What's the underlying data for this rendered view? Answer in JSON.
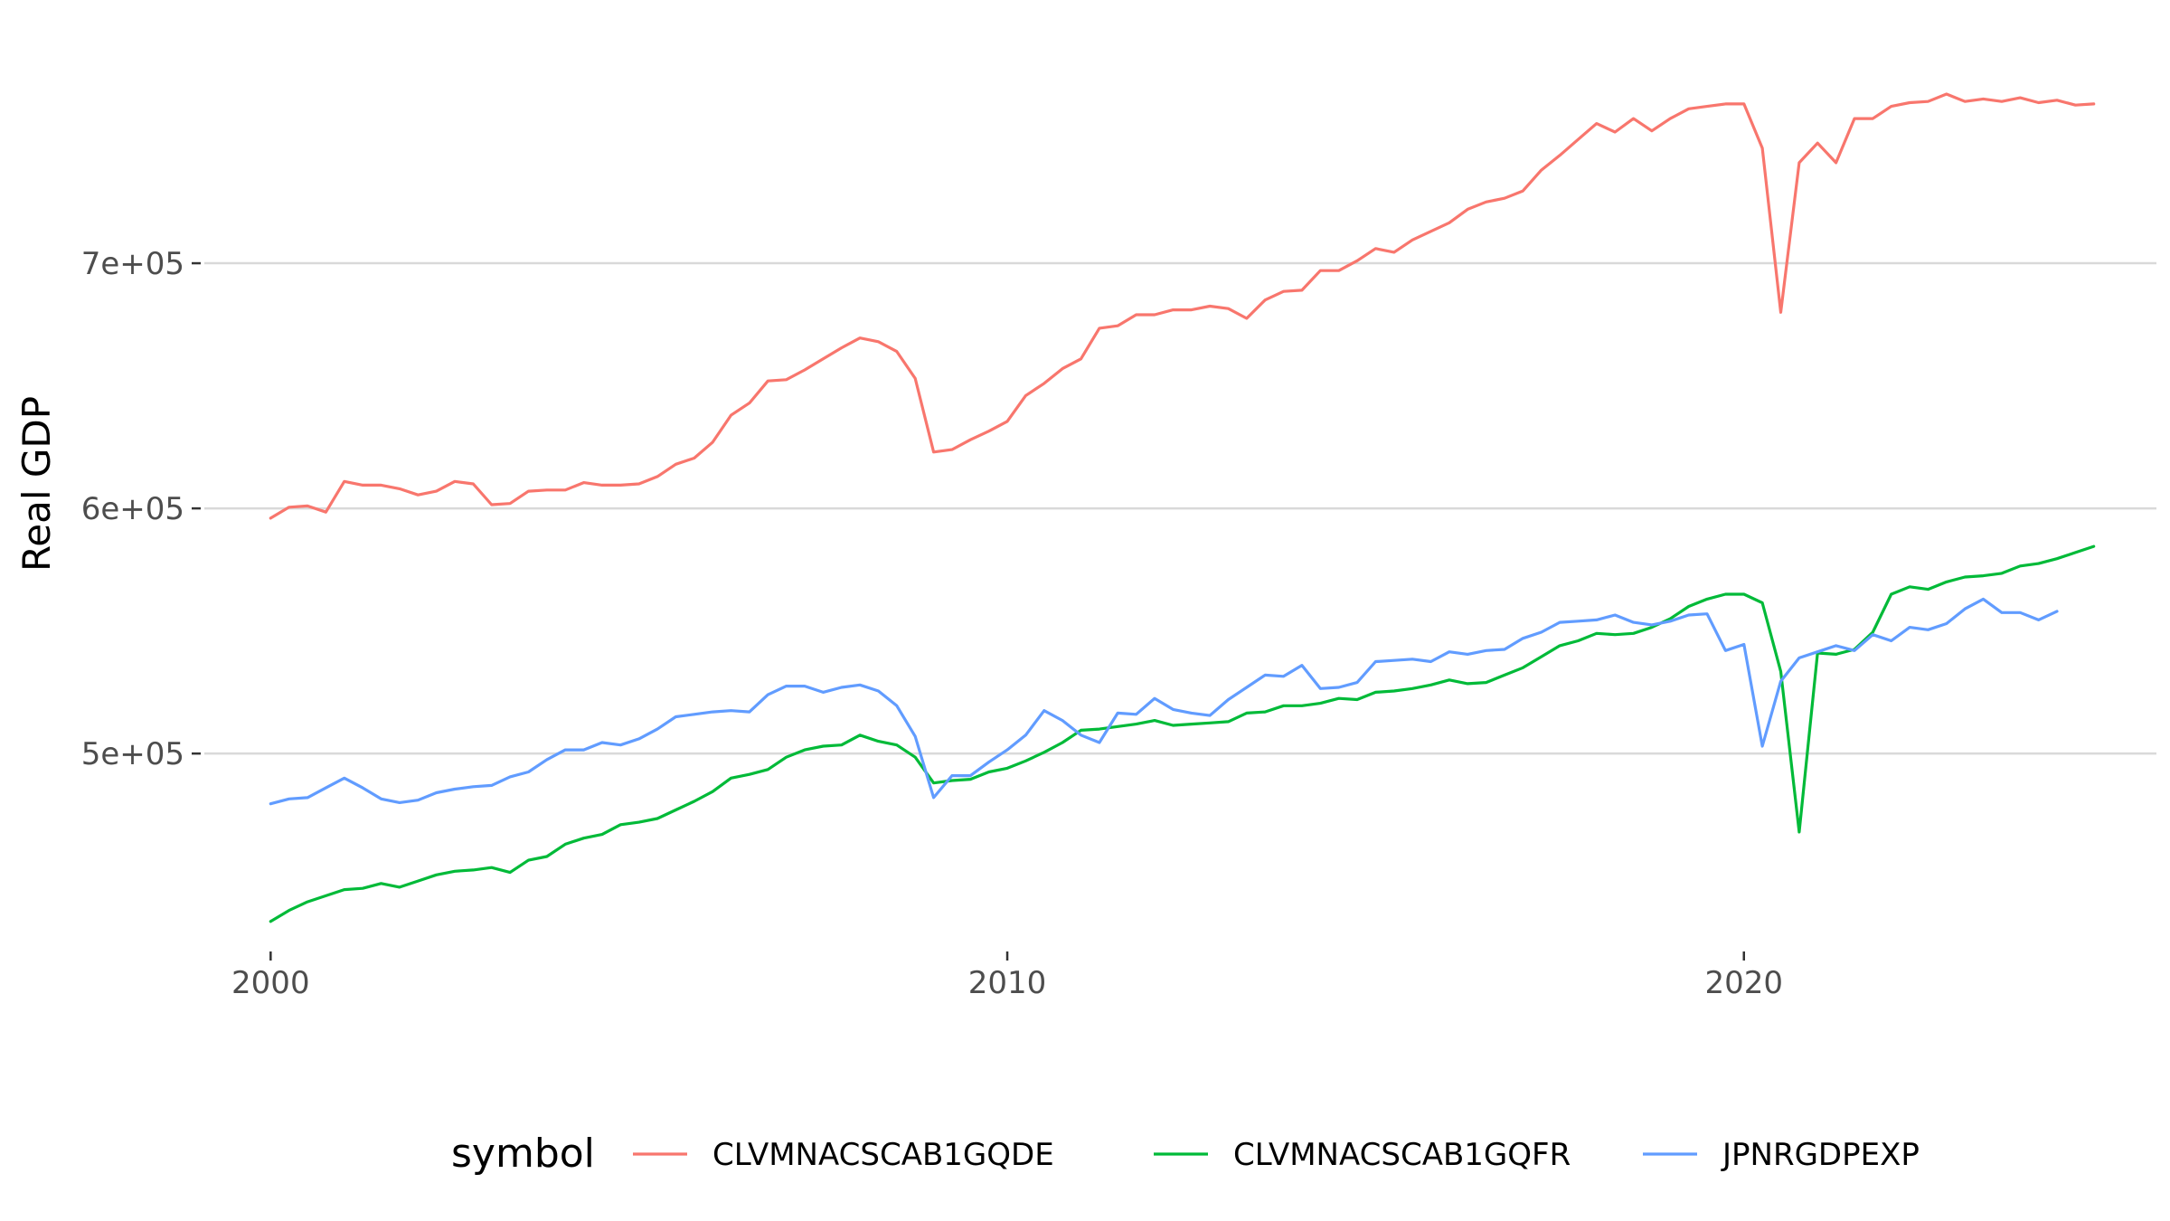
{
  "chart_data": {
    "type": "line",
    "ylabel": "Real GDP",
    "xlabel": "",
    "xlim": [
      1999.1,
      2025.6
    ],
    "ylim": [
      420000,
      800000
    ],
    "x_ticks": [
      2000,
      2010,
      2020
    ],
    "x_tick_labels": [
      "2000",
      "2010",
      "2020"
    ],
    "y_ticks": [
      500000,
      600000,
      700000
    ],
    "y_tick_labels": [
      "5e+05",
      "6e+05",
      "7e+05"
    ],
    "grid": true,
    "legend": {
      "title": "symbol",
      "position": "bottom"
    },
    "x_start": 2000.0,
    "x_step": 0.25,
    "series": [
      {
        "name": "CLVMNACSCAB1GQDE",
        "color": "#f8766d",
        "values": [
          596000,
          600500,
          601000,
          598500,
          611000,
          609500,
          609500,
          608000,
          605500,
          607000,
          611000,
          610000,
          601500,
          602000,
          607000,
          607500,
          607500,
          610500,
          609500,
          609500,
          610000,
          613000,
          618000,
          620500,
          627000,
          638000,
          643000,
          652000,
          652500,
          656500,
          661000,
          665500,
          669500,
          668000,
          664000,
          653000,
          623000,
          624000,
          628000,
          631500,
          635500,
          646000,
          651000,
          657000,
          661000,
          673500,
          674500,
          679000,
          679000,
          681000,
          681000,
          682500,
          681500,
          677500,
          685000,
          688500,
          689000,
          697000,
          697000,
          701000,
          706000,
          704500,
          709500,
          713000,
          716500,
          722000,
          725000,
          726500,
          729500,
          738000,
          744000,
          750500,
          757000,
          753500,
          759000,
          754000,
          759000,
          763000,
          764000,
          765000,
          765000,
          747000,
          680000,
          741000,
          749000,
          741000,
          759000,
          759000,
          764000,
          765500,
          766000,
          769000,
          766000,
          767000,
          766000,
          767500,
          765500,
          766500,
          764500,
          765000
        ]
      },
      {
        "name": "CLVMNACSCAB1GQFR",
        "color": "#00ba38",
        "values": [
          431500,
          436000,
          439500,
          442000,
          444500,
          445000,
          447000,
          445500,
          448000,
          450500,
          452000,
          452500,
          453500,
          451500,
          456500,
          458000,
          463000,
          465500,
          467000,
          471000,
          472000,
          473500,
          477000,
          480500,
          484500,
          490000,
          491500,
          493500,
          498500,
          501500,
          503000,
          503500,
          507500,
          505000,
          503500,
          498500,
          488000,
          489000,
          489500,
          492500,
          494000,
          497000,
          500500,
          504500,
          509500,
          510000,
          511000,
          512000,
          513500,
          511500,
          512000,
          512500,
          513000,
          516500,
          517000,
          519500,
          519500,
          520500,
          522500,
          522000,
          525000,
          525500,
          526500,
          528000,
          530000,
          528500,
          529000,
          532000,
          535000,
          539500,
          544000,
          546000,
          549000,
          548500,
          549000,
          551500,
          555000,
          560000,
          563000,
          565000,
          565000,
          561500,
          533500,
          468000,
          541000,
          540500,
          542500,
          549500,
          565000,
          568000,
          567000,
          570000,
          572000,
          572500,
          573500,
          576500,
          577500,
          579500,
          582000,
          584500
        ]
      },
      {
        "name": "JPNRGDPEXP",
        "color": "#619cff",
        "values": [
          479500,
          481500,
          482000,
          486000,
          490000,
          486000,
          481500,
          480000,
          481000,
          484000,
          485500,
          486500,
          487000,
          490500,
          492500,
          497500,
          501500,
          501500,
          504500,
          503500,
          506000,
          510000,
          515000,
          516000,
          517000,
          517500,
          517000,
          524000,
          527500,
          527500,
          525000,
          527000,
          528000,
          525500,
          519500,
          507000,
          482000,
          491000,
          491000,
          496500,
          501500,
          507500,
          517500,
          513500,
          507500,
          504500,
          516500,
          516000,
          522500,
          518000,
          516500,
          515500,
          522000,
          527000,
          532000,
          531500,
          536000,
          526500,
          527000,
          529000,
          537500,
          538000,
          538500,
          537500,
          541500,
          540500,
          542000,
          542500,
          547000,
          549500,
          553500,
          554000,
          554500,
          556500,
          553500,
          552500,
          554000,
          556500,
          557000,
          542000,
          544500,
          503000,
          529500,
          539000,
          541500,
          544000,
          542000,
          548500,
          546000,
          551500,
          550500,
          553000,
          559000,
          563000,
          557500,
          557500,
          554500,
          558000
        ]
      }
    ]
  }
}
